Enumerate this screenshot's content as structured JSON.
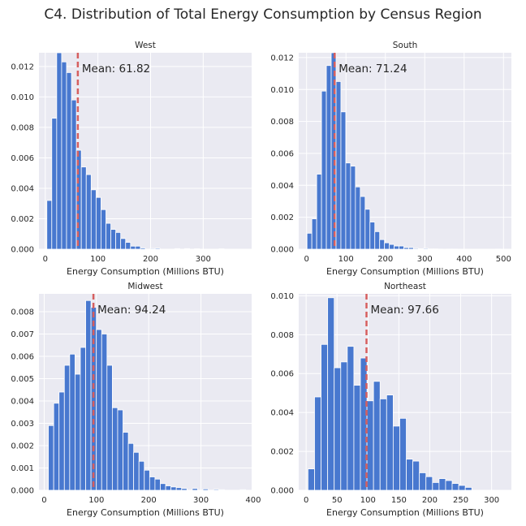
{
  "title": "C4. Distribution of Total Energy Consumption by Census Region",
  "colors": {
    "bar": "#4878CF",
    "mean_line": "#D65F5F",
    "plot_background": "#EAEAF2"
  },
  "chart_data": [
    {
      "type": "bar",
      "title": "West",
      "xlabel": "Energy Consumption (Millions BTU)",
      "ylabel": "",
      "xlim": [
        -12,
        392
      ],
      "ylim": [
        0,
        0.0129
      ],
      "xticks": [
        0,
        100,
        200,
        300
      ],
      "yticks": [
        0,
        0.002,
        0.004,
        0.006,
        0.008,
        0.01,
        0.012
      ],
      "ytick_labels": [
        "0.000",
        "0.002",
        "0.004",
        "0.006",
        "0.008",
        "0.010",
        "0.012"
      ],
      "bin_start": 3.0,
      "bin_width": 9.35,
      "values": [
        0.0032,
        0.0086,
        0.0129,
        0.0123,
        0.0116,
        0.0098,
        0.0065,
        0.0054,
        0.0049,
        0.0039,
        0.0034,
        0.0026,
        0.0017,
        0.0013,
        0.0011,
        0.0007,
        0.00045,
        0.0002,
        0.0002,
        8e-05,
        0,
        5e-05,
        6e-05,
        0,
        0,
        0,
        4e-05,
        0,
        4e-05,
        0,
        3e-05,
        0,
        0,
        0,
        0,
        3e-05
      ],
      "mean": 61.82,
      "mean_label": "Mean: 61.82",
      "grid": true
    },
    {
      "type": "bar",
      "title": "South",
      "xlabel": "Energy Consumption (Millions BTU)",
      "ylabel": "",
      "xlim": [
        -20,
        520
      ],
      "ylim": [
        0,
        0.0123
      ],
      "xticks": [
        0,
        100,
        200,
        300,
        400,
        500
      ],
      "yticks": [
        0,
        0.002,
        0.004,
        0.006,
        0.008,
        0.01,
        0.012
      ],
      "ytick_labels": [
        "0.000",
        "0.002",
        "0.004",
        "0.006",
        "0.008",
        "0.010",
        "0.012"
      ],
      "bin_start": 1.0,
      "bin_width": 12.3,
      "values": [
        0.001,
        0.0019,
        0.0047,
        0.0099,
        0.0115,
        0.0123,
        0.0105,
        0.0086,
        0.0054,
        0.0052,
        0.0039,
        0.0033,
        0.0025,
        0.0017,
        0.0011,
        0.0006,
        0.0004,
        0.0003,
        0.0002,
        0.0002,
        0.0001,
        0.0001,
        5e-05,
        3e-05,
        5e-05,
        2e-05,
        2e-05,
        1e-05,
        0,
        1e-05,
        1e-05,
        0,
        0,
        0,
        0,
        0,
        0,
        0,
        0,
        1e-05
      ],
      "mean": 71.24,
      "mean_label": "Mean: 71.24",
      "grid": true
    },
    {
      "type": "bar",
      "title": "Midwest",
      "xlabel": "Energy Consumption (Millions BTU)",
      "ylabel": "",
      "xlim": [
        -10,
        397
      ],
      "ylim": [
        0,
        0.0088
      ],
      "xticks": [
        0,
        100,
        200,
        300,
        400
      ],
      "yticks": [
        0,
        0.001,
        0.002,
        0.003,
        0.004,
        0.005,
        0.006,
        0.007,
        0.008
      ],
      "ytick_labels": [
        "0.000",
        "0.001",
        "0.002",
        "0.003",
        "0.004",
        "0.005",
        "0.006",
        "0.007",
        "0.008"
      ],
      "bin_start": 8.0,
      "bin_width": 10.2,
      "values": [
        0.0029,
        0.0039,
        0.0044,
        0.0056,
        0.0061,
        0.0052,
        0.0064,
        0.0085,
        0.0082,
        0.0072,
        0.007,
        0.0056,
        0.0037,
        0.0036,
        0.0026,
        0.0021,
        0.0017,
        0.0013,
        0.0009,
        0.0006,
        0.0005,
        0.0003,
        0.0002,
        0.00015,
        0.00012,
        8e-05,
        0,
        8e-05,
        0,
        6e-05,
        0,
        4e-05,
        3e-05,
        0,
        0,
        0,
        3e-05
      ],
      "mean": 94.24,
      "mean_label": "Mean: 94.24",
      "grid": true
    },
    {
      "type": "bar",
      "title": "Northeast",
      "xlabel": "Energy Consumption (Millions BTU)",
      "ylabel": "",
      "xlim": [
        -12,
        332
      ],
      "ylim": [
        0,
        0.0101
      ],
      "xticks": [
        0,
        50,
        100,
        150,
        200,
        250,
        300
      ],
      "yticks": [
        0,
        0.002,
        0.004,
        0.006,
        0.008,
        0.01
      ],
      "ytick_labels": [
        "0.000",
        "0.002",
        "0.004",
        "0.006",
        "0.008",
        "0.010"
      ],
      "bin_start": 3.0,
      "bin_width": 10.6,
      "values": [
        0.0011,
        0.0048,
        0.0075,
        0.0099,
        0.0063,
        0.0066,
        0.0074,
        0.0054,
        0.0068,
        0.0046,
        0.0056,
        0.0047,
        0.0049,
        0.0033,
        0.0037,
        0.0016,
        0.0015,
        0.0009,
        0.0007,
        0.0004,
        0.0006,
        0.0005,
        0.00035,
        0.00025,
        0.00015
      ],
      "mean": 97.66,
      "mean_label": "Mean: 97.66",
      "grid": true
    }
  ]
}
